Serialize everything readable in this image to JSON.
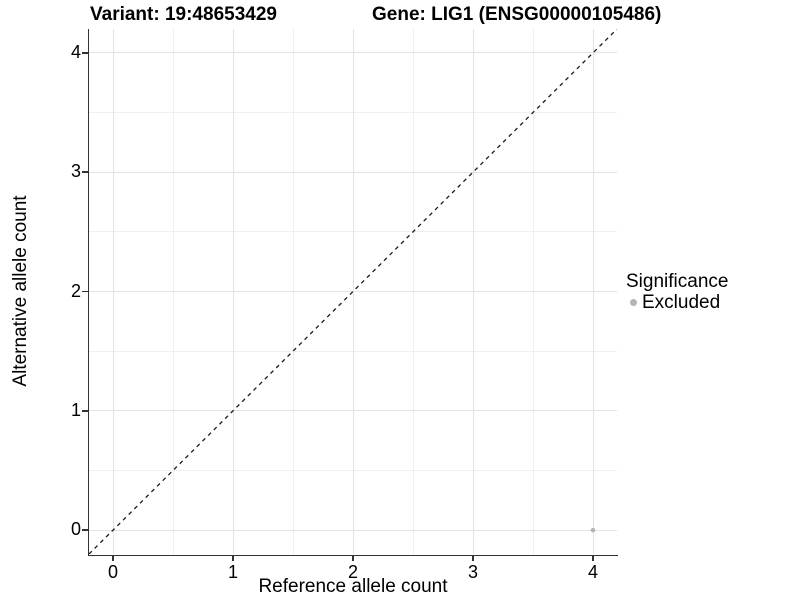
{
  "chart_data": {
    "type": "scatter",
    "title_left": "Variant: 19:48653429",
    "title_right": "Gene: LIG1 (ENSG00000105486)",
    "xlabel": "Reference allele count",
    "ylabel": "Alternative allele count",
    "xlim": [
      -0.2,
      4.2
    ],
    "ylim": [
      -0.2,
      4.2
    ],
    "x_major": [
      0,
      1,
      2,
      3,
      4
    ],
    "x_minor": [
      0.5,
      1.5,
      2.5,
      3.5
    ],
    "y_major": [
      0,
      1,
      2,
      3,
      4
    ],
    "y_minor": [
      0.5,
      1.5,
      2.5,
      3.5
    ],
    "x_tick_labels": [
      "0",
      "1",
      "2",
      "3",
      "4"
    ],
    "y_tick_labels": [
      "0",
      "1",
      "2",
      "3",
      "4"
    ],
    "grid": "major+minor",
    "reference_line": {
      "style": "dashed",
      "equation": "y = x",
      "from": [
        -0.2,
        -0.2
      ],
      "to": [
        4.2,
        4.2
      ]
    },
    "points": [
      {
        "x": 4,
        "y": 0,
        "significance": "Excluded"
      }
    ],
    "legend": {
      "title": "Significance",
      "position": "right",
      "items": [
        {
          "label": "Excluded",
          "color": "#b4b4b4"
        }
      ]
    }
  },
  "colors": {
    "background": "#ffffff",
    "axis_line": "#333333",
    "grid_major": "#e3e3e3",
    "grid_minor": "#efefef",
    "reference_line": "#1a1a1a",
    "point_excluded": "#b4b4b4",
    "text": "#000000"
  }
}
